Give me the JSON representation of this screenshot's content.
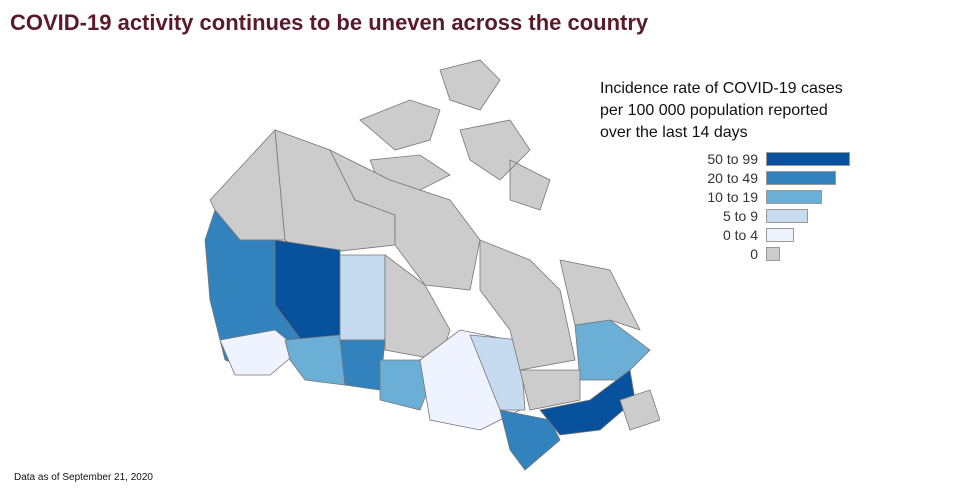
{
  "title": "COVID-19 activity continues to be uneven across the country",
  "legend": {
    "title_lines": [
      "Incidence rate of COVID-19 cases",
      "per 100 000 population reported",
      "over the last 14 days"
    ],
    "items": [
      {
        "label": "50 to 99",
        "color": "#08519c"
      },
      {
        "label": "20 to 49",
        "color": "#3182bd"
      },
      {
        "label": "10 to 19",
        "color": "#6baed6"
      },
      {
        "label": "5 to 9",
        "color": "#c6dbef"
      },
      {
        "label": "0 to 4",
        "color": "#eff3ff"
      },
      {
        "label": "0",
        "color": "#cccccc"
      }
    ]
  },
  "footer": "Data as of September 21, 2020"
}
